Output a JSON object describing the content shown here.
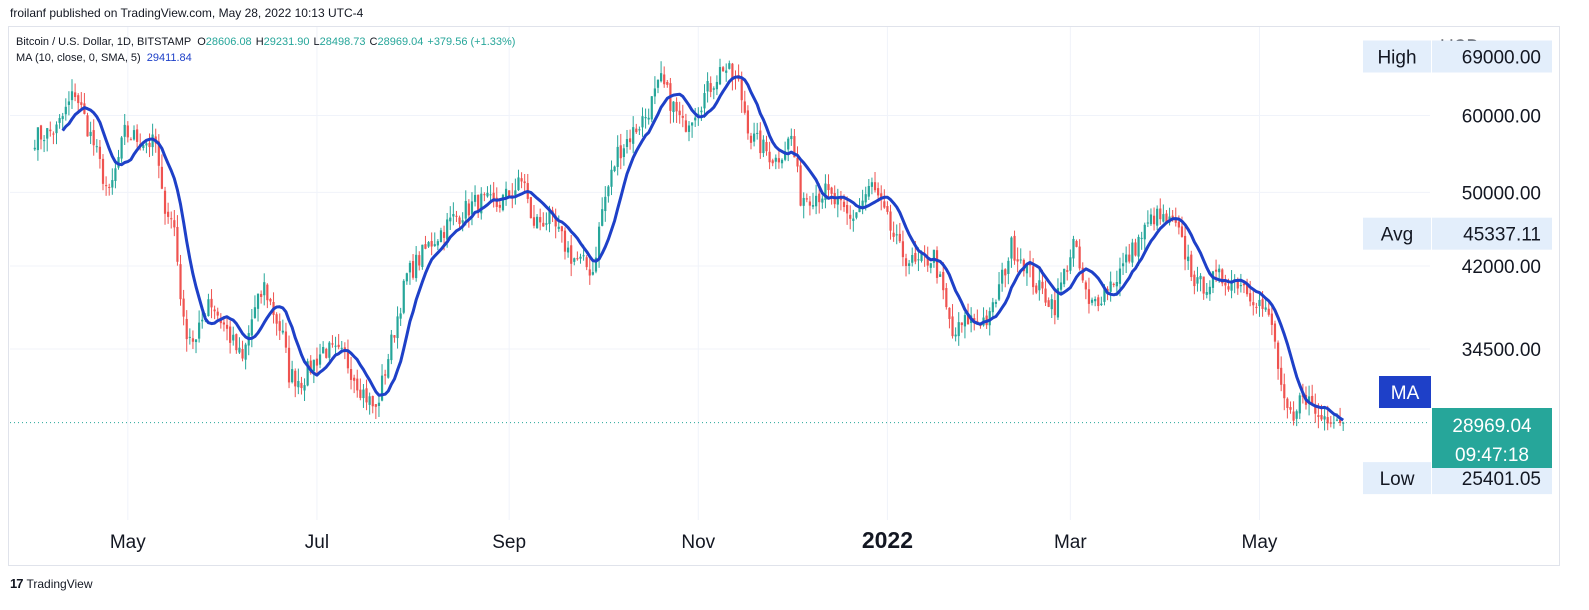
{
  "header": {
    "publisher": "froilanf published on TradingView.com, May 28, 2022 10:13 UTC-4"
  },
  "legend": {
    "symbol": "Bitcoin / U.S. Dollar, 1D, BITSTAMP",
    "open_label": "O",
    "open": "28606.08",
    "high_label": "H",
    "high": "29231.90",
    "low_label": "L",
    "low": "28498.73",
    "close_label": "C",
    "close": "28969.04",
    "change": "+379.56 (+1.33%)",
    "ma_label": "MA (10, close, 0, SMA, 5)",
    "ma_value": "29411.84"
  },
  "footer": {
    "logo_mark": "17",
    "brand": "TradingView"
  },
  "colors": {
    "up": "#26a69a",
    "down": "#ef5350",
    "ma": "#1e40c8",
    "label_bg": "#e3eefb",
    "price_badge": "#26a69a",
    "ma_badge": "#1e40c8",
    "grid": "#f0f3fa"
  },
  "chart_data": {
    "type": "candlestick",
    "currency_label": "USD",
    "y_ticks": [
      "60000.00",
      "50000.00",
      "42000.00",
      "34500.00"
    ],
    "x_ticks": [
      {
        "label": "May",
        "date": "2021-05-01",
        "bold": false
      },
      {
        "label": "Jul",
        "date": "2021-07-01",
        "bold": false
      },
      {
        "label": "Sep",
        "date": "2021-09-01",
        "bold": false
      },
      {
        "label": "Nov",
        "date": "2021-11-01",
        "bold": false
      },
      {
        "label": "2022",
        "date": "2022-01-01",
        "bold": true
      },
      {
        "label": "Mar",
        "date": "2022-03-01",
        "bold": false
      },
      {
        "label": "May",
        "date": "2022-05-01",
        "bold": false
      }
    ],
    "y_log_range": [
      23000,
      74000
    ],
    "scale": "log",
    "date_range": [
      "2021-03-24",
      "2022-06-25"
    ],
    "levels": [
      {
        "name": "High",
        "value": "69000.00"
      },
      {
        "name": "Avg",
        "value": "45337.11"
      },
      {
        "name": "Low",
        "value": "25401.05"
      }
    ],
    "last_price": "28969.04",
    "countdown": "09:47:18",
    "ma_badge_label": "MA",
    "series_name": "MA",
    "close_anchors": [
      [
        "2021-04-01",
        57000
      ],
      [
        "2021-04-08",
        58000
      ],
      [
        "2021-04-14",
        63500
      ],
      [
        "2021-04-20",
        56000
      ],
      [
        "2021-04-25",
        49500
      ],
      [
        "2021-04-30",
        57500
      ],
      [
        "2021-05-06",
        56500
      ],
      [
        "2021-05-10",
        56000
      ],
      [
        "2021-05-12",
        49500
      ],
      [
        "2021-05-16",
        46000
      ],
      [
        "2021-05-19",
        36500
      ],
      [
        "2021-05-23",
        35000
      ],
      [
        "2021-05-27",
        39000
      ],
      [
        "2021-06-01",
        36500
      ],
      [
        "2021-06-07",
        33500
      ],
      [
        "2021-06-10",
        37000
      ],
      [
        "2021-06-14",
        40000
      ],
      [
        "2021-06-20",
        35500
      ],
      [
        "2021-06-22",
        32500
      ],
      [
        "2021-06-26",
        32000
      ],
      [
        "2021-07-03",
        34500
      ],
      [
        "2021-07-10",
        33800
      ],
      [
        "2021-07-15",
        31500
      ],
      [
        "2021-07-20",
        29800
      ],
      [
        "2021-07-25",
        35000
      ],
      [
        "2021-07-30",
        41000
      ],
      [
        "2021-08-07",
        44500
      ],
      [
        "2021-08-14",
        47000
      ],
      [
        "2021-08-22",
        49000
      ],
      [
        "2021-08-28",
        48500
      ],
      [
        "2021-09-06",
        51500
      ],
      [
        "2021-09-08",
        46500
      ],
      [
        "2021-09-14",
        47000
      ],
      [
        "2021-09-21",
        43000
      ],
      [
        "2021-09-28",
        41500
      ],
      [
        "2021-10-01",
        48000
      ],
      [
        "2021-10-06",
        55000
      ],
      [
        "2021-10-15",
        60000
      ],
      [
        "2021-10-20",
        65000
      ],
      [
        "2021-10-27",
        58500
      ],
      [
        "2021-11-01",
        61500
      ],
      [
        "2021-11-09",
        67500
      ],
      [
        "2021-11-14",
        64500
      ],
      [
        "2021-11-18",
        57000
      ],
      [
        "2021-11-26",
        54000
      ],
      [
        "2021-12-01",
        57000
      ],
      [
        "2021-12-04",
        49500
      ],
      [
        "2021-12-12",
        50000
      ],
      [
        "2021-12-20",
        46800
      ],
      [
        "2021-12-27",
        50800
      ],
      [
        "2022-01-05",
        43500
      ],
      [
        "2022-01-10",
        42000
      ],
      [
        "2022-01-16",
        43000
      ],
      [
        "2022-01-22",
        35500
      ],
      [
        "2022-01-27",
        37000
      ],
      [
        "2022-02-03",
        37000
      ],
      [
        "2022-02-10",
        44000
      ],
      [
        "2022-02-14",
        42500
      ],
      [
        "2022-02-18",
        40000
      ],
      [
        "2022-02-24",
        38300
      ],
      [
        "2022-03-02",
        44300
      ],
      [
        "2022-03-07",
        38000
      ],
      [
        "2022-03-16",
        41000
      ],
      [
        "2022-03-28",
        47300
      ],
      [
        "2022-04-04",
        46000
      ],
      [
        "2022-04-11",
        40000
      ],
      [
        "2022-04-18",
        40800
      ],
      [
        "2022-04-25",
        40500
      ],
      [
        "2022-05-01",
        38500
      ],
      [
        "2022-05-05",
        36500
      ],
      [
        "2022-05-09",
        30000
      ],
      [
        "2022-05-12",
        28800
      ],
      [
        "2022-05-15",
        31300
      ],
      [
        "2022-05-20",
        29300
      ],
      [
        "2022-05-25",
        29600
      ],
      [
        "2022-05-28",
        28969
      ]
    ]
  }
}
